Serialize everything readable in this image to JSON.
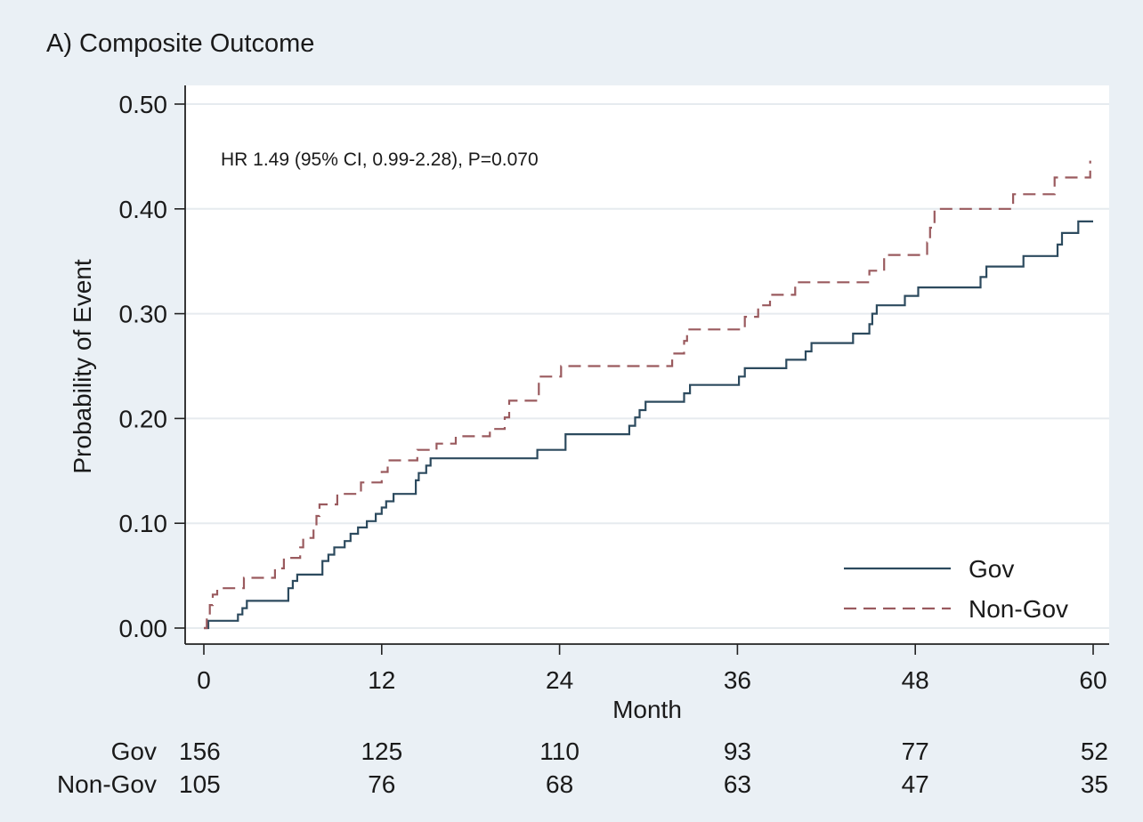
{
  "chart_data": {
    "type": "line",
    "title": "A) Composite Outcome",
    "xlabel": "Month",
    "ylabel": "Probability of Event",
    "xlim": [
      0,
      60
    ],
    "ylim": [
      0,
      0.5
    ],
    "x_ticks": [
      0,
      12,
      24,
      36,
      48,
      60
    ],
    "y_ticks": [
      "0.00",
      "0.10",
      "0.20",
      "0.30",
      "0.40",
      "0.50"
    ],
    "grid": true,
    "annotation": "HR 1.49 (95% CI, 0.99-2.28), P=0.070",
    "legend_position": "bottom-right",
    "series": [
      {
        "name": "Gov",
        "color": "#2c4a5e",
        "style": "solid",
        "points": [
          [
            0,
            0
          ],
          [
            0.3,
            0.007
          ],
          [
            2,
            0.007
          ],
          [
            2.3,
            0.013
          ],
          [
            2.6,
            0.019
          ],
          [
            2.9,
            0.026
          ],
          [
            5.4,
            0.026
          ],
          [
            5.7,
            0.038
          ],
          [
            6,
            0.045
          ],
          [
            6.3,
            0.051
          ],
          [
            7.7,
            0.051
          ],
          [
            8,
            0.064
          ],
          [
            8.4,
            0.07
          ],
          [
            8.8,
            0.077
          ],
          [
            9.5,
            0.083
          ],
          [
            9.9,
            0.09
          ],
          [
            10.4,
            0.096
          ],
          [
            11,
            0.102
          ],
          [
            11.6,
            0.109
          ],
          [
            12,
            0.115
          ],
          [
            12.3,
            0.121
          ],
          [
            12.8,
            0.128
          ],
          [
            14.1,
            0.128
          ],
          [
            14.3,
            0.141
          ],
          [
            14.5,
            0.148
          ],
          [
            15,
            0.155
          ],
          [
            15.3,
            0.162
          ],
          [
            22.3,
            0.162
          ],
          [
            22.5,
            0.17
          ],
          [
            24.2,
            0.17
          ],
          [
            24.4,
            0.185
          ],
          [
            28.4,
            0.185
          ],
          [
            28.7,
            0.193
          ],
          [
            29.1,
            0.201
          ],
          [
            29.4,
            0.208
          ],
          [
            29.8,
            0.216
          ],
          [
            32.1,
            0.216
          ],
          [
            32.4,
            0.224
          ],
          [
            32.8,
            0.232
          ],
          [
            35.8,
            0.232
          ],
          [
            36.1,
            0.24
          ],
          [
            36.5,
            0.248
          ],
          [
            39,
            0.248
          ],
          [
            39.3,
            0.256
          ],
          [
            40.3,
            0.256
          ],
          [
            40.6,
            0.264
          ],
          [
            41,
            0.272
          ],
          [
            43.5,
            0.272
          ],
          [
            43.8,
            0.281
          ],
          [
            44.6,
            0.281
          ],
          [
            44.9,
            0.29
          ],
          [
            45.1,
            0.3
          ],
          [
            45.4,
            0.308
          ],
          [
            47,
            0.308
          ],
          [
            47.3,
            0.317
          ],
          [
            47.9,
            0.317
          ],
          [
            48.2,
            0.325
          ],
          [
            52.2,
            0.325
          ],
          [
            52.4,
            0.335
          ],
          [
            52.8,
            0.345
          ],
          [
            55.1,
            0.345
          ],
          [
            55.3,
            0.355
          ],
          [
            57.3,
            0.355
          ],
          [
            57.6,
            0.366
          ],
          [
            57.9,
            0.377
          ],
          [
            58.7,
            0.377
          ],
          [
            59,
            0.388
          ],
          [
            60,
            0.388
          ]
        ]
      },
      {
        "name": "Non-Gov",
        "color": "#9a5a5e",
        "style": "dashed",
        "points": [
          [
            0,
            0
          ],
          [
            0.2,
            0.011
          ],
          [
            0.4,
            0.022
          ],
          [
            0.6,
            0.032
          ],
          [
            0.9,
            0.038
          ],
          [
            2.4,
            0.038
          ],
          [
            2.7,
            0.048
          ],
          [
            4.5,
            0.048
          ],
          [
            4.8,
            0.057
          ],
          [
            5.1,
            0.057
          ],
          [
            5.4,
            0.067
          ],
          [
            6.2,
            0.067
          ],
          [
            6.5,
            0.077
          ],
          [
            6.7,
            0.086
          ],
          [
            7.2,
            0.086
          ],
          [
            7.4,
            0.096
          ],
          [
            7.6,
            0.107
          ],
          [
            7.8,
            0.118
          ],
          [
            8.7,
            0.118
          ],
          [
            9,
            0.128
          ],
          [
            10.3,
            0.128
          ],
          [
            10.6,
            0.139
          ],
          [
            11.7,
            0.139
          ],
          [
            12,
            0.149
          ],
          [
            12.4,
            0.16
          ],
          [
            14.1,
            0.16
          ],
          [
            14.4,
            0.17
          ],
          [
            15.4,
            0.17
          ],
          [
            15.7,
            0.176
          ],
          [
            16.7,
            0.176
          ],
          [
            17,
            0.183
          ],
          [
            19,
            0.183
          ],
          [
            19.3,
            0.19
          ],
          [
            20,
            0.19
          ],
          [
            20.3,
            0.201
          ],
          [
            20.6,
            0.217
          ],
          [
            22.3,
            0.217
          ],
          [
            22.6,
            0.24
          ],
          [
            23.8,
            0.24
          ],
          [
            24.1,
            0.25
          ],
          [
            31.3,
            0.25
          ],
          [
            31.6,
            0.262
          ],
          [
            32.1,
            0.262
          ],
          [
            32.4,
            0.274
          ],
          [
            32.6,
            0.285
          ],
          [
            36.1,
            0.285
          ],
          [
            36.5,
            0.297
          ],
          [
            37.1,
            0.297
          ],
          [
            37.4,
            0.308
          ],
          [
            37.9,
            0.308
          ],
          [
            38.2,
            0.318
          ],
          [
            39.6,
            0.318
          ],
          [
            39.9,
            0.33
          ],
          [
            44.6,
            0.33
          ],
          [
            44.9,
            0.341
          ],
          [
            45.6,
            0.341
          ],
          [
            45.9,
            0.356
          ],
          [
            48.5,
            0.356
          ],
          [
            48.8,
            0.368
          ],
          [
            49,
            0.382
          ],
          [
            49.3,
            0.4
          ],
          [
            54.3,
            0.4
          ],
          [
            54.6,
            0.414
          ],
          [
            57.1,
            0.414
          ],
          [
            57.4,
            0.43
          ],
          [
            59.5,
            0.43
          ],
          [
            59.8,
            0.446
          ]
        ]
      }
    ],
    "risk_table": {
      "months": [
        0,
        12,
        24,
        36,
        48,
        60
      ],
      "rows": [
        {
          "label": "Gov",
          "values": [
            "156",
            "125",
            "110",
            "93",
            "77",
            "52"
          ]
        },
        {
          "label": "Non-Gov",
          "values": [
            "105",
            "76",
            "68",
            "63",
            "47",
            "35"
          ]
        }
      ]
    }
  }
}
